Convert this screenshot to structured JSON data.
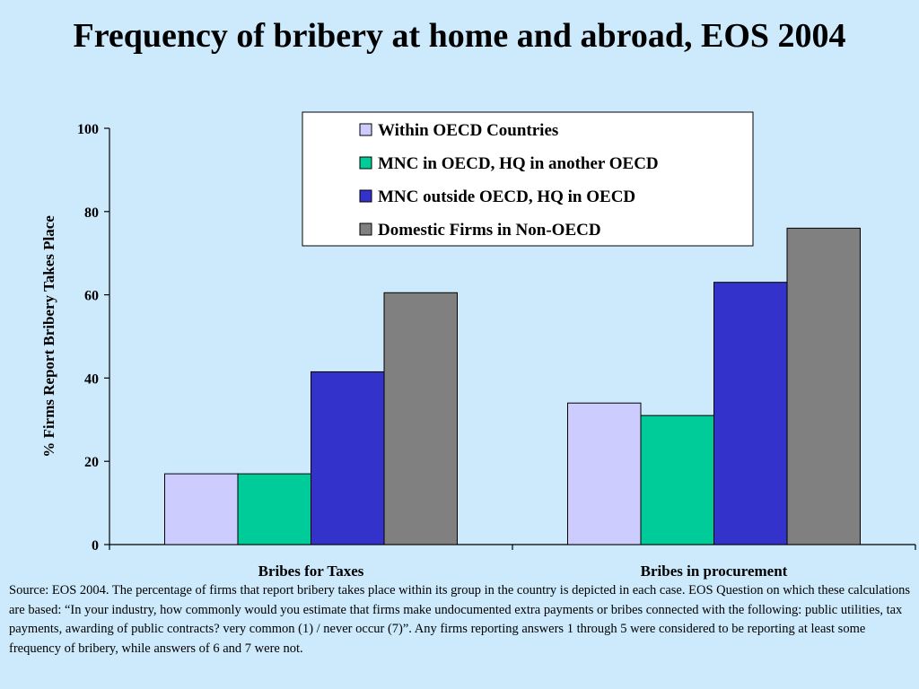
{
  "colors": {
    "background": "#cdeafc",
    "series": [
      "#ccccff",
      "#00cc99",
      "#3333cc",
      "#808080"
    ]
  },
  "chart_data": {
    "type": "bar",
    "title": "Frequency of bribery at home and abroad, EOS 2004",
    "ylabel": "% Firms Report Bribery Takes Place",
    "xlabel": "",
    "ylim": [
      0,
      100
    ],
    "yticks": [
      0,
      20,
      40,
      60,
      80,
      100
    ],
    "categories": [
      "Bribes for Taxes",
      "Bribes in procurement"
    ],
    "series": [
      {
        "name": "Within OECD Countries",
        "values": [
          17,
          34
        ]
      },
      {
        "name": "MNC in OECD, HQ in another OECD",
        "values": [
          17,
          31
        ]
      },
      {
        "name": "MNC outside OECD, HQ in OECD",
        "values": [
          41.5,
          63
        ]
      },
      {
        "name": "Domestic Firms in Non-OECD",
        "values": [
          60.5,
          76
        ]
      }
    ],
    "legend": "top-right",
    "grid": false
  },
  "source_note": "Source: EOS 2004. The percentage of firms that report bribery takes place within its group in the country is depicted in each case.  EOS Question on which these calculations are based: “In your industry,  how commonly would you estimate that firms make undocumented extra payments or bribes connected with the following: public utilities, tax payments, awarding of public contracts?  very common (1) / never occur (7)”. Any firms reporting answers 1 through 5 were considered to be reporting at least some frequency of bribery, while answers of 6 and 7 were not."
}
